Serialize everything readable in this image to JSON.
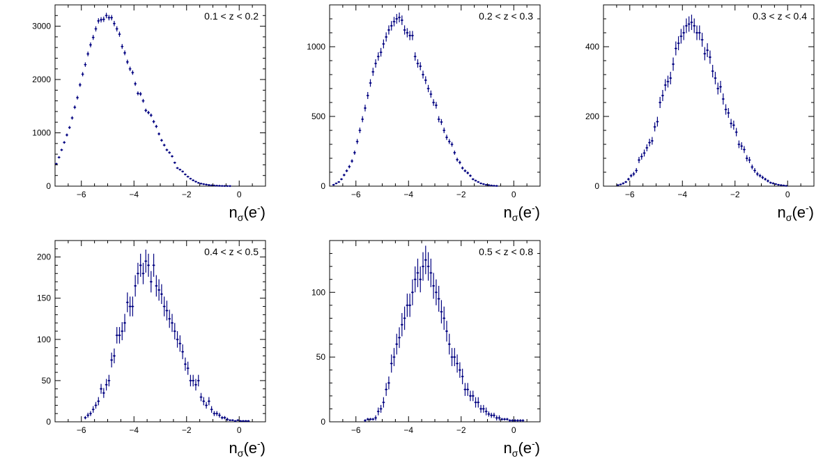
{
  "colors": {
    "marker": "#000080",
    "frame": "#000000",
    "background": "#ffffff"
  },
  "panels": [
    {
      "label": "0.1 < z < 0.2"
    },
    {
      "label": "0.2 < z < 0.3"
    },
    {
      "label": "0.3 < z < 0.4"
    },
    {
      "label": "0.4 < z < 0.5"
    },
    {
      "label": "0.5 < z < 0.8"
    }
  ],
  "axis_title": {
    "main": "n",
    "sub": "σ",
    "tail": "(e",
    "sup": "-",
    "close": ")"
  },
  "chart_data": [
    {
      "type": "scatter",
      "label": "0.1 < z < 0.2",
      "xlabel": "nσ(e-)",
      "ylabel": "",
      "xlim": [
        -7,
        1
      ],
      "ylim": [
        0,
        3400
      ],
      "xticks": [
        -6,
        -4,
        -2,
        0
      ],
      "yticks": [
        0,
        1000,
        2000,
        3000
      ],
      "x": [
        -6.95,
        -6.85,
        -6.75,
        -6.65,
        -6.55,
        -6.45,
        -6.35,
        -6.25,
        -6.15,
        -6.05,
        -5.95,
        -5.85,
        -5.75,
        -5.65,
        -5.55,
        -5.45,
        -5.35,
        -5.25,
        -5.15,
        -5.05,
        -4.95,
        -4.85,
        -4.75,
        -4.65,
        -4.55,
        -4.45,
        -4.35,
        -4.25,
        -4.15,
        -4.05,
        -3.95,
        -3.85,
        -3.75,
        -3.65,
        -3.55,
        -3.45,
        -3.35,
        -3.25,
        -3.15,
        -3.05,
        -2.95,
        -2.85,
        -2.75,
        -2.65,
        -2.55,
        -2.45,
        -2.35,
        -2.25,
        -2.15,
        -2.05,
        -1.95,
        -1.85,
        -1.75,
        -1.65,
        -1.55,
        -1.45,
        -1.35,
        -1.25,
        -1.15,
        -1.05,
        -0.95,
        -0.85,
        -0.75,
        -0.65,
        -0.55,
        -0.45,
        -0.35
      ],
      "y": [
        420,
        540,
        680,
        820,
        960,
        1100,
        1280,
        1480,
        1660,
        1900,
        2100,
        2280,
        2480,
        2650,
        2790,
        2950,
        3100,
        3120,
        3130,
        3200,
        3160,
        3160,
        3050,
        2950,
        2850,
        2620,
        2500,
        2330,
        2200,
        2130,
        1920,
        1740,
        1730,
        1600,
        1420,
        1380,
        1330,
        1210,
        1120,
        980,
        860,
        770,
        680,
        630,
        560,
        440,
        340,
        310,
        275,
        220,
        178,
        140,
        110,
        85,
        62,
        48,
        38,
        30,
        22,
        16,
        12,
        9,
        7,
        5,
        4,
        3,
        2
      ],
      "err": [
        18,
        20,
        22,
        25,
        27,
        29,
        32,
        34,
        36,
        38,
        40,
        42,
        44,
        46,
        47,
        49,
        50,
        50,
        50,
        51,
        50,
        50,
        50,
        49,
        48,
        46,
        45,
        43,
        42,
        41,
        39,
        37,
        37,
        36,
        34,
        33,
        33,
        31,
        30,
        28,
        26,
        25,
        23,
        22,
        21,
        19,
        17,
        16,
        15,
        13,
        12,
        11,
        10,
        9,
        7,
        6,
        5,
        5,
        4,
        3,
        3,
        2,
        2,
        2,
        2,
        1,
        1
      ]
    },
    {
      "type": "scatter",
      "label": "0.2 < z < 0.3",
      "xlabel": "nσ(e-)",
      "ylabel": "",
      "xlim": [
        -7,
        1
      ],
      "ylim": [
        0,
        1300
      ],
      "xticks": [
        -6,
        -4,
        -2,
        0
      ],
      "yticks": [
        0,
        500,
        1000
      ],
      "x": [
        -6.85,
        -6.75,
        -6.65,
        -6.55,
        -6.45,
        -6.35,
        -6.25,
        -6.15,
        -6.05,
        -5.95,
        -5.85,
        -5.75,
        -5.65,
        -5.55,
        -5.45,
        -5.35,
        -5.25,
        -5.15,
        -5.05,
        -4.95,
        -4.85,
        -4.75,
        -4.65,
        -4.55,
        -4.45,
        -4.35,
        -4.25,
        -4.15,
        -4.05,
        -3.95,
        -3.85,
        -3.75,
        -3.65,
        -3.55,
        -3.45,
        -3.35,
        -3.25,
        -3.15,
        -3.05,
        -2.95,
        -2.85,
        -2.75,
        -2.65,
        -2.55,
        -2.45,
        -2.35,
        -2.25,
        -2.15,
        -2.05,
        -1.95,
        -1.85,
        -1.75,
        -1.65,
        -1.55,
        -1.45,
        -1.35,
        -1.25,
        -1.15,
        -1.05,
        -0.95,
        -0.85,
        -0.75,
        -0.65
      ],
      "y": [
        10,
        20,
        30,
        50,
        80,
        110,
        140,
        180,
        240,
        320,
        400,
        480,
        560,
        650,
        740,
        820,
        880,
        930,
        960,
        1020,
        1070,
        1120,
        1150,
        1180,
        1200,
        1210,
        1190,
        1120,
        1100,
        1080,
        1080,
        930,
        880,
        860,
        800,
        760,
        700,
        660,
        600,
        580,
        480,
        460,
        400,
        350,
        320,
        300,
        240,
        190,
        170,
        130,
        110,
        95,
        75,
        50,
        40,
        30,
        20,
        15,
        10,
        8,
        5,
        3,
        2
      ],
      "err": [
        3,
        4,
        5,
        7,
        9,
        10,
        12,
        13,
        15,
        18,
        20,
        22,
        24,
        25,
        27,
        29,
        30,
        30,
        31,
        32,
        33,
        33,
        34,
        34,
        35,
        35,
        34,
        33,
        33,
        33,
        33,
        30,
        30,
        29,
        28,
        28,
        26,
        26,
        24,
        24,
        22,
        21,
        20,
        19,
        18,
        17,
        15,
        14,
        13,
        11,
        10,
        10,
        9,
        7,
        6,
        5,
        4,
        4,
        3,
        3,
        2,
        2,
        1
      ]
    },
    {
      "type": "scatter",
      "label": "0.3 < z < 0.4",
      "xlabel": "nσ(e-)",
      "ylabel": "",
      "xlim": [
        -7,
        1
      ],
      "ylim": [
        0,
        520
      ],
      "xticks": [
        -6,
        -4,
        -2,
        0
      ],
      "yticks": [
        0,
        200,
        400
      ],
      "x": [
        -6.45,
        -6.35,
        -6.25,
        -6.15,
        -6.05,
        -5.95,
        -5.85,
        -5.75,
        -5.65,
        -5.55,
        -5.45,
        -5.35,
        -5.25,
        -5.15,
        -5.05,
        -4.95,
        -4.85,
        -4.75,
        -4.65,
        -4.55,
        -4.45,
        -4.35,
        -4.25,
        -4.15,
        -4.05,
        -3.95,
        -3.85,
        -3.75,
        -3.65,
        -3.55,
        -3.45,
        -3.35,
        -3.25,
        -3.15,
        -3.05,
        -2.95,
        -2.85,
        -2.75,
        -2.65,
        -2.55,
        -2.45,
        -2.35,
        -2.25,
        -2.15,
        -2.05,
        -1.95,
        -1.85,
        -1.75,
        -1.65,
        -1.55,
        -1.45,
        -1.35,
        -1.25,
        -1.15,
        -1.05,
        -0.95,
        -0.85,
        -0.75,
        -0.65,
        -0.55,
        -0.45,
        -0.35,
        -0.25,
        -0.15,
        -0.05
      ],
      "y": [
        3,
        5,
        8,
        12,
        20,
        30,
        35,
        45,
        75,
        85,
        95,
        110,
        125,
        130,
        170,
        185,
        240,
        260,
        290,
        300,
        310,
        350,
        395,
        410,
        430,
        440,
        460,
        465,
        470,
        460,
        440,
        440,
        420,
        380,
        390,
        370,
        330,
        310,
        280,
        285,
        250,
        220,
        210,
        180,
        175,
        155,
        120,
        115,
        105,
        80,
        75,
        55,
        45,
        35,
        30,
        25,
        20,
        15,
        10,
        8,
        6,
        4,
        3,
        2,
        1
      ],
      "err": [
        2,
        2,
        3,
        3,
        4,
        5,
        6,
        7,
        9,
        9,
        10,
        10,
        11,
        11,
        13,
        14,
        16,
        16,
        17,
        17,
        18,
        19,
        20,
        20,
        21,
        21,
        21,
        22,
        22,
        21,
        21,
        21,
        20,
        19,
        20,
        19,
        18,
        18,
        17,
        17,
        16,
        15,
        14,
        13,
        13,
        12,
        11,
        11,
        10,
        9,
        9,
        7,
        7,
        6,
        5,
        5,
        4,
        4,
        3,
        3,
        2,
        2,
        2,
        1,
        1
      ]
    },
    {
      "type": "scatter",
      "label": "0.4 < z < 0.5",
      "xlabel": "nσ(e-)",
      "ylabel": "",
      "xlim": [
        -7,
        1
      ],
      "ylim": [
        0,
        220
      ],
      "xticks": [
        -6,
        -4,
        -2,
        0
      ],
      "yticks": [
        0,
        50,
        100,
        150,
        200
      ],
      "x": [
        -5.85,
        -5.75,
        -5.65,
        -5.55,
        -5.45,
        -5.35,
        -5.25,
        -5.15,
        -5.05,
        -4.95,
        -4.85,
        -4.75,
        -4.65,
        -4.55,
        -4.45,
        -4.35,
        -4.25,
        -4.15,
        -4.05,
        -3.95,
        -3.85,
        -3.75,
        -3.65,
        -3.55,
        -3.45,
        -3.35,
        -3.25,
        -3.15,
        -3.05,
        -2.95,
        -2.85,
        -2.75,
        -2.65,
        -2.55,
        -2.45,
        -2.35,
        -2.25,
        -2.15,
        -2.05,
        -1.95,
        -1.85,
        -1.75,
        -1.65,
        -1.55,
        -1.45,
        -1.35,
        -1.25,
        -1.15,
        -1.05,
        -0.95,
        -0.85,
        -0.75,
        -0.65,
        -0.55,
        -0.45,
        -0.35,
        -0.25,
        -0.15,
        -0.05,
        0.05,
        0.15,
        0.25,
        0.35
      ],
      "y": [
        5,
        8,
        10,
        15,
        20,
        25,
        40,
        35,
        45,
        50,
        75,
        80,
        105,
        105,
        110,
        120,
        145,
        140,
        140,
        165,
        180,
        190,
        180,
        195,
        190,
        170,
        190,
        165,
        160,
        155,
        140,
        135,
        125,
        120,
        110,
        100,
        95,
        85,
        70,
        65,
        50,
        50,
        45,
        50,
        30,
        25,
        20,
        25,
        15,
        10,
        10,
        8,
        5,
        5,
        3,
        2,
        2,
        1,
        2,
        1,
        1,
        1,
        1
      ],
      "err": [
        2,
        3,
        3,
        4,
        4,
        5,
        6,
        6,
        7,
        7,
        9,
        9,
        10,
        10,
        11,
        11,
        12,
        12,
        12,
        13,
        13,
        14,
        13,
        14,
        14,
        13,
        14,
        13,
        13,
        12,
        12,
        12,
        11,
        11,
        10,
        10,
        10,
        9,
        8,
        8,
        7,
        7,
        7,
        7,
        5,
        5,
        4,
        5,
        4,
        3,
        3,
        3,
        2,
        2,
        2,
        1,
        1,
        1,
        1,
        1,
        1,
        1,
        1
      ]
    },
    {
      "type": "scatter",
      "label": "0.5 < z < 0.8",
      "xlabel": "nσ(e-)",
      "ylabel": "",
      "xlim": [
        -7,
        1
      ],
      "ylim": [
        0,
        140
      ],
      "xticks": [
        -6,
        -4,
        -2,
        0
      ],
      "yticks": [
        0,
        50,
        100
      ],
      "x": [
        -5.65,
        -5.55,
        -5.45,
        -5.35,
        -5.25,
        -5.15,
        -5.05,
        -4.95,
        -4.85,
        -4.75,
        -4.65,
        -4.55,
        -4.45,
        -4.35,
        -4.25,
        -4.15,
        -4.05,
        -3.95,
        -3.85,
        -3.75,
        -3.65,
        -3.55,
        -3.45,
        -3.35,
        -3.25,
        -3.15,
        -3.05,
        -2.95,
        -2.85,
        -2.75,
        -2.65,
        -2.55,
        -2.45,
        -2.35,
        -2.25,
        -2.15,
        -2.05,
        -1.95,
        -1.85,
        -1.75,
        -1.65,
        -1.55,
        -1.45,
        -1.35,
        -1.25,
        -1.15,
        -1.05,
        -0.95,
        -0.85,
        -0.75,
        -0.65,
        -0.55,
        -0.45,
        -0.35,
        -0.25,
        -0.15,
        -0.05,
        0.05,
        0.15,
        0.25,
        0.35
      ],
      "y": [
        1,
        2,
        2,
        2,
        3,
        8,
        10,
        15,
        25,
        30,
        45,
        50,
        60,
        65,
        75,
        80,
        90,
        90,
        100,
        110,
        115,
        110,
        120,
        125,
        120,
        115,
        105,
        100,
        95,
        85,
        80,
        70,
        60,
        50,
        50,
        45,
        40,
        35,
        25,
        25,
        20,
        20,
        15,
        15,
        10,
        10,
        8,
        6,
        5,
        5,
        3,
        3,
        2,
        2,
        2,
        1,
        1,
        1,
        1,
        1,
        1
      ],
      "err": [
        1,
        1,
        1,
        1,
        2,
        3,
        3,
        4,
        5,
        5,
        7,
        7,
        8,
        8,
        9,
        9,
        9,
        9,
        10,
        10,
        11,
        10,
        11,
        11,
        11,
        11,
        10,
        10,
        10,
        9,
        9,
        8,
        8,
        7,
        7,
        7,
        6,
        6,
        5,
        5,
        4,
        4,
        4,
        4,
        3,
        3,
        3,
        2,
        2,
        2,
        2,
        2,
        1,
        1,
        1,
        1,
        1,
        1,
        1,
        1,
        1
      ]
    }
  ]
}
